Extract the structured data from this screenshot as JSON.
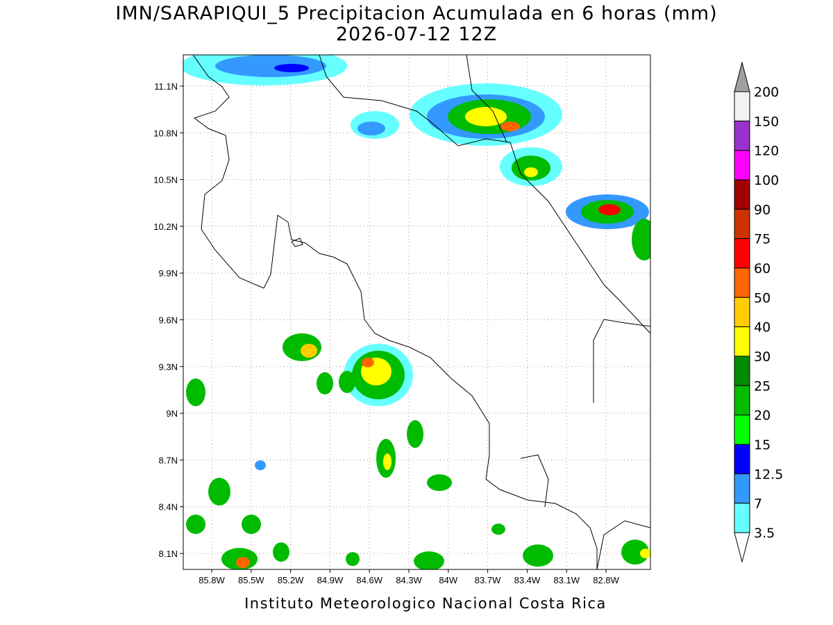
{
  "header": {
    "title": "IMN/SARAPIQUI_5 Precipitacion Acumulada en 6 horas (mm)",
    "subtitle": "2026-07-12 12Z"
  },
  "map": {
    "lat_labels": [
      "11.1N",
      "10.8N",
      "10.5N",
      "10.2N",
      "9.9N",
      "9.6N",
      "9.3N",
      "9N",
      "8.7N",
      "8.4N",
      "8.1N"
    ],
    "lon_labels": [
      "85.8W",
      "85.5W",
      "85.2W",
      "84.9W",
      "84.6W",
      "84.3W",
      "84W",
      "83.7W",
      "83.4W",
      "83.1W",
      "82.8W"
    ]
  },
  "colorbar": {
    "labels": [
      "200",
      "150",
      "120",
      "100",
      "90",
      "75",
      "60",
      "50",
      "40",
      "30",
      "25",
      "20",
      "15",
      "12.5",
      "7",
      "3.5"
    ],
    "colors": [
      "#f2f2f2",
      "#9932cc",
      "#ff00ff",
      "#a00000",
      "#cc3300",
      "#ff0000",
      "#ff6600",
      "#ffcc00",
      "#ffff00",
      "#008c00",
      "#00bb00",
      "#00ff00",
      "#0000ff",
      "#3399ff",
      "#66ffff"
    ],
    "over_color": "#a0a0a0",
    "under_color": "#ffffff"
  },
  "footer": {
    "text": "Instituto Meteorologico Nacional Costa Rica"
  }
}
